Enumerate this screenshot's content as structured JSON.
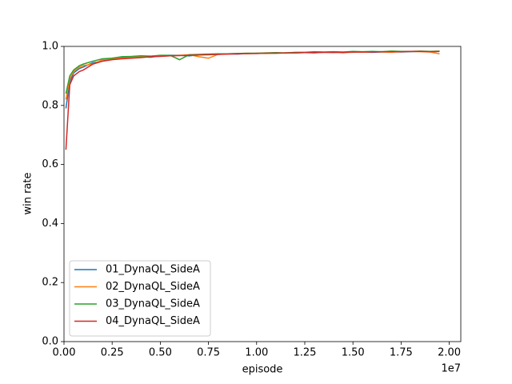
{
  "chart_data": {
    "type": "line",
    "xlabel": "episode",
    "ylabel": "win rate",
    "x_offset_label": "1e7",
    "x": [
      100000,
      300000,
      500000,
      800000,
      1000000,
      1500000,
      2000000,
      2500000,
      3000000,
      3500000,
      4000000,
      4500000,
      5000000,
      5500000,
      6000000,
      6500000,
      7000000,
      7500000,
      8000000,
      8500000,
      9000000,
      9500000,
      10000000,
      10500000,
      11000000,
      11500000,
      12000000,
      12500000,
      13000000,
      13500000,
      14000000,
      14500000,
      15000000,
      15500000,
      16000000,
      16500000,
      17000000,
      17500000,
      18000000,
      18500000,
      19000000,
      19500000
    ],
    "series": [
      {
        "name": "01_DynaQL_SideA",
        "color": "#1f77b4",
        "values": [
          0.79,
          0.88,
          0.91,
          0.925,
          0.93,
          0.945,
          0.95,
          0.96,
          0.962,
          0.965,
          0.965,
          0.963,
          0.968,
          0.97,
          0.97,
          0.968,
          0.972,
          0.972,
          0.974,
          0.975,
          0.974,
          0.976,
          0.976,
          0.977,
          0.977,
          0.978,
          0.978,
          0.979,
          0.978,
          0.98,
          0.979,
          0.98,
          0.98,
          0.981,
          0.98,
          0.981,
          0.982,
          0.981,
          0.982,
          0.983,
          0.982,
          0.983
        ]
      },
      {
        "name": "02_DynaQL_SideA",
        "color": "#ff7f0e",
        "values": [
          0.82,
          0.89,
          0.915,
          0.93,
          0.935,
          0.94,
          0.955,
          0.958,
          0.96,
          0.962,
          0.966,
          0.965,
          0.967,
          0.968,
          0.97,
          0.972,
          0.965,
          0.96,
          0.973,
          0.975,
          0.976,
          0.975,
          0.977,
          0.976,
          0.978,
          0.977,
          0.979,
          0.98,
          0.979,
          0.98,
          0.98,
          0.978,
          0.981,
          0.98,
          0.982,
          0.981,
          0.98,
          0.982,
          0.983,
          0.982,
          0.981,
          0.975
        ]
      },
      {
        "name": "03_DynaQL_SideA",
        "color": "#2ca02c",
        "values": [
          0.84,
          0.9,
          0.92,
          0.935,
          0.94,
          0.95,
          0.958,
          0.96,
          0.965,
          0.966,
          0.968,
          0.967,
          0.97,
          0.97,
          0.955,
          0.972,
          0.973,
          0.974,
          0.975,
          0.975,
          0.976,
          0.977,
          0.977,
          0.978,
          0.979,
          0.978,
          0.98,
          0.98,
          0.982,
          0.981,
          0.982,
          0.981,
          0.983,
          0.982,
          0.983,
          0.982,
          0.984,
          0.983,
          0.983,
          0.984,
          0.983,
          0.984
        ]
      },
      {
        "name": "04_DynaQL_SideA",
        "color": "#d62728",
        "values": [
          0.65,
          0.87,
          0.9,
          0.915,
          0.92,
          0.94,
          0.95,
          0.955,
          0.958,
          0.96,
          0.962,
          0.965,
          0.966,
          0.968,
          0.969,
          0.97,
          0.971,
          0.972,
          0.973,
          0.974,
          0.975,
          0.976,
          0.976,
          0.977,
          0.977,
          0.978,
          0.978,
          0.979,
          0.979,
          0.98,
          0.98,
          0.98,
          0.981,
          0.981,
          0.981,
          0.982,
          0.982,
          0.982,
          0.983,
          0.983,
          0.982,
          0.983
        ]
      }
    ],
    "xlim": [
      0,
      20600000
    ],
    "xticks": [
      {
        "value": 0,
        "label": "0.00"
      },
      {
        "value": 2500000,
        "label": "0.25"
      },
      {
        "value": 5000000,
        "label": "0.50"
      },
      {
        "value": 7500000,
        "label": "0.75"
      },
      {
        "value": 10000000,
        "label": "1.00"
      },
      {
        "value": 12500000,
        "label": "1.25"
      },
      {
        "value": 15000000,
        "label": "1.50"
      },
      {
        "value": 17500000,
        "label": "1.75"
      },
      {
        "value": 20000000,
        "label": "2.00"
      }
    ],
    "ylim": [
      0,
      1
    ],
    "yticks": [
      {
        "value": 0,
        "label": "0.0"
      },
      0.2,
      0.4,
      0.6,
      0.8,
      {
        "value": 1,
        "label": "1.0"
      }
    ],
    "grid": false,
    "legend": "lower left"
  }
}
